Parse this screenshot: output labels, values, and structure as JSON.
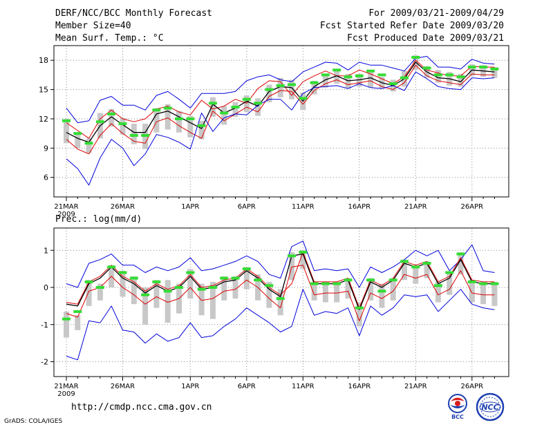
{
  "header": {
    "title": "DERF/NCC/BCC Monthly Forecast",
    "member": "Member Size=40",
    "variable": "Mean Surf. Temp.: °C",
    "period": "For 2009/03/21-2009/04/29",
    "started": "Fcst Started Refer Date 2009/03/20",
    "produced": "Fcst Produced Date 2009/03/21"
  },
  "footer": {
    "url": "http://cmdp.ncc.cma.gov.cn",
    "credit": "GrADS: COLA/IGES",
    "logo1": "BCC",
    "logo2": "NCC"
  },
  "colors": {
    "envelope": "#0000dd",
    "spread": "#dd0000",
    "mean": "#000000",
    "box": "#c8c8c8",
    "observed": "#33dd33",
    "grid": "#888888"
  },
  "chart_data": [
    {
      "type": "line",
      "title": "Mean Surf. Temp.: °C",
      "x_tick_labels": [
        "21MAR",
        "26MAR",
        "1APR",
        "6APR",
        "11APR",
        "16APR",
        "21APR",
        "26APR"
      ],
      "x_tick_days": [
        0,
        5,
        11,
        16,
        21,
        26,
        31,
        36
      ],
      "year_label": "2009",
      "ylim": [
        4,
        19.5
      ],
      "y_ticks": [
        6,
        9,
        12,
        15,
        18
      ],
      "days": [
        0,
        1,
        2,
        3,
        4,
        5,
        6,
        7,
        8,
        9,
        10,
        11,
        12,
        13,
        14,
        15,
        16,
        17,
        18,
        19,
        20,
        21,
        22,
        23,
        24,
        25,
        26,
        27,
        28,
        29,
        30,
        31,
        32,
        33,
        34,
        35,
        36,
        37,
        38
      ],
      "series": [
        {
          "name": "ensemble-max",
          "values": [
            13.1,
            11.6,
            11.8,
            13.9,
            14.3,
            13.4,
            13.4,
            12.9,
            14.4,
            14.8,
            14.0,
            13.1,
            14.6,
            14.6,
            14.6,
            14.8,
            15.9,
            16.3,
            16.5,
            16.0,
            15.8,
            16.8,
            17.3,
            17.8,
            17.7,
            17.0,
            17.8,
            17.5,
            17.5,
            17.2,
            16.9,
            18.2,
            18.4,
            17.3,
            17.3,
            17.1,
            18.1,
            17.7,
            17.6
          ]
        },
        {
          "name": "spread-upper",
          "values": [
            11.6,
            10.8,
            10.0,
            12.0,
            12.9,
            12.0,
            11.7,
            12.0,
            13.0,
            13.3,
            12.7,
            12.4,
            13.9,
            13.0,
            13.3,
            14.0,
            13.6,
            15.1,
            15.9,
            15.8,
            14.4,
            15.8,
            16.4,
            16.9,
            16.4,
            16.4,
            17.0,
            16.6,
            16.1,
            15.6,
            16.3,
            18.0,
            17.0,
            16.7,
            16.4,
            16.4,
            17.4,
            17.3,
            17.3
          ]
        },
        {
          "name": "ensemble-mean",
          "values": [
            10.6,
            10.0,
            9.6,
            11.3,
            12.2,
            11.4,
            10.6,
            10.6,
            12.5,
            12.8,
            12.2,
            11.6,
            11.0,
            13.5,
            12.6,
            13.1,
            13.8,
            13.3,
            14.8,
            15.3,
            15.2,
            13.8,
            15.3,
            16.0,
            16.4,
            15.9,
            16.0,
            16.2,
            15.7,
            15.4,
            16.1,
            17.8,
            16.8,
            16.2,
            16.1,
            15.8,
            17.0,
            16.9,
            16.8
          ]
        },
        {
          "name": "spread-lower",
          "values": [
            9.9,
            8.9,
            8.4,
            10.3,
            11.5,
            10.5,
            9.7,
            9.5,
            11.7,
            12.1,
            11.3,
            10.6,
            10.0,
            12.8,
            11.8,
            12.5,
            13.2,
            12.7,
            14.3,
            14.9,
            14.8,
            13.5,
            14.9,
            15.6,
            16.0,
            15.5,
            15.7,
            15.9,
            15.3,
            15.0,
            15.7,
            17.5,
            16.4,
            15.9,
            15.7,
            15.5,
            16.6,
            16.5,
            16.5
          ]
        },
        {
          "name": "ensemble-min",
          "values": [
            7.9,
            6.9,
            5.2,
            8.0,
            9.9,
            9.0,
            7.2,
            8.4,
            10.4,
            10.1,
            9.6,
            8.9,
            12.6,
            10.7,
            12.1,
            12.5,
            12.4,
            13.4,
            14.0,
            14.0,
            12.9,
            14.6,
            15.2,
            15.3,
            15.4,
            15.1,
            15.6,
            15.2,
            15.1,
            15.4,
            14.9,
            16.8,
            16.1,
            15.3,
            15.1,
            15.0,
            16.2,
            16.1,
            16.2
          ]
        },
        {
          "name": "observed",
          "values": [
            11.8,
            10.5,
            9.5,
            11.7,
            12.5,
            11.5,
            10.3,
            10.3,
            12.9,
            13.1,
            12.0,
            12.0,
            11.3,
            13.6,
            12.6,
            13.2,
            14.0,
            13.6,
            15.0,
            15.4,
            15.5,
            14.1,
            15.7,
            16.5,
            17.0,
            16.3,
            16.4,
            16.9,
            16.5,
            15.6,
            16.2,
            18.3,
            17.2,
            16.5,
            16.5,
            16.3,
            17.3,
            17.3,
            17.1
          ]
        }
      ],
      "boxes": {
        "upper": [
          12.0,
          10.5,
          10.0,
          12.6,
          13.0,
          12.1,
          11.5,
          11.5,
          13.1,
          13.5,
          12.8,
          12.3,
          11.8,
          14.2,
          13.3,
          13.7,
          14.4,
          14.1,
          15.5,
          16.2,
          16.0,
          14.7,
          15.9,
          16.6,
          17.0,
          16.6,
          16.6,
          16.9,
          16.3,
          16.0,
          16.9,
          18.5,
          17.4,
          17.0,
          16.8,
          16.6,
          17.6,
          17.5,
          17.3
        ],
        "lower": [
          9.5,
          9.0,
          8.5,
          10.0,
          11.2,
          10.4,
          9.4,
          8.9,
          10.6,
          10.9,
          10.6,
          10.1,
          9.9,
          12.2,
          11.4,
          12.2,
          12.7,
          12.3,
          13.7,
          14.2,
          14.0,
          12.9,
          14.5,
          15.2,
          15.6,
          15.1,
          15.3,
          15.2,
          15.1,
          14.8,
          15.3,
          17.0,
          16.2,
          15.7,
          15.4,
          15.3,
          16.4,
          16.3,
          16.2
        ]
      }
    },
    {
      "type": "line",
      "title": "Prec.: log(mm/d)",
      "x_tick_labels": [
        "21MAR",
        "26MAR",
        "1APR",
        "6APR",
        "11APR",
        "16APR",
        "21APR",
        "26APR"
      ],
      "x_tick_days": [
        0,
        5,
        11,
        16,
        21,
        26,
        31,
        36
      ],
      "year_label": "2009",
      "ylim": [
        -2.4,
        1.6
      ],
      "y_ticks": [
        -2,
        -1,
        0,
        1
      ],
      "days": [
        0,
        1,
        2,
        3,
        4,
        5,
        6,
        7,
        8,
        9,
        10,
        11,
        12,
        13,
        14,
        15,
        16,
        17,
        18,
        19,
        20,
        21,
        22,
        23,
        24,
        25,
        26,
        27,
        28,
        29,
        30,
        31,
        32,
        33,
        34,
        35,
        36,
        37,
        38
      ],
      "series": [
        {
          "name": "ensemble-max",
          "values": [
            0.1,
            0.0,
            0.65,
            0.75,
            0.9,
            0.6,
            0.6,
            0.4,
            0.55,
            0.45,
            0.55,
            0.8,
            0.45,
            0.5,
            0.6,
            0.7,
            0.85,
            0.7,
            0.35,
            0.25,
            1.1,
            1.25,
            0.45,
            0.5,
            0.45,
            0.5,
            0.0,
            0.55,
            0.4,
            0.55,
            0.75,
            1.0,
            0.85,
            1.0,
            0.45,
            0.75,
            1.15,
            0.45,
            0.4
          ]
        },
        {
          "name": "spread-upper",
          "values": [
            -0.4,
            -0.45,
            0.15,
            0.3,
            0.6,
            0.3,
            0.15,
            -0.1,
            0.1,
            -0.05,
            0.05,
            0.35,
            0.0,
            0.05,
            0.2,
            0.25,
            0.5,
            0.3,
            0.0,
            -0.2,
            0.1,
            0.95,
            0.15,
            0.15,
            0.15,
            0.25,
            -0.55,
            0.2,
            0.05,
            0.25,
            0.7,
            0.6,
            0.7,
            0.15,
            0.3,
            0.8,
            0.2,
            0.15,
            0.15
          ]
        },
        {
          "name": "ensemble-mean",
          "values": [
            -0.45,
            -0.5,
            0.1,
            0.25,
            0.55,
            0.25,
            0.1,
            -0.15,
            0.05,
            -0.1,
            0.0,
            0.3,
            -0.05,
            0.0,
            0.15,
            0.2,
            0.45,
            0.25,
            -0.05,
            -0.25,
            0.85,
            0.9,
            0.1,
            0.1,
            0.1,
            0.2,
            -0.6,
            0.15,
            0.0,
            0.2,
            0.65,
            0.55,
            0.65,
            0.1,
            0.25,
            0.75,
            0.15,
            0.1,
            0.1
          ]
        },
        {
          "name": "spread-lower",
          "values": [
            -0.7,
            -0.8,
            -0.1,
            0.0,
            0.3,
            0.0,
            -0.2,
            -0.45,
            -0.25,
            -0.4,
            -0.3,
            0.0,
            -0.35,
            -0.3,
            -0.1,
            -0.05,
            0.2,
            0.0,
            -0.3,
            -0.55,
            0.55,
            0.6,
            -0.2,
            -0.15,
            -0.15,
            -0.1,
            -0.9,
            -0.15,
            -0.3,
            -0.1,
            0.35,
            0.25,
            0.35,
            -0.2,
            -0.05,
            0.45,
            -0.15,
            -0.2,
            -0.2
          ]
        },
        {
          "name": "ensemble-min",
          "values": [
            -1.85,
            -1.95,
            -0.9,
            -0.95,
            -0.5,
            -1.15,
            -1.2,
            -1.5,
            -1.25,
            -1.45,
            -1.35,
            -0.95,
            -1.35,
            -1.3,
            -1.05,
            -0.85,
            -0.55,
            -0.75,
            -0.95,
            -1.2,
            -1.05,
            -0.05,
            -0.75,
            -0.65,
            -0.7,
            -0.55,
            -1.3,
            -0.5,
            -0.75,
            -0.55,
            -0.2,
            -0.25,
            -0.2,
            -0.65,
            -0.35,
            -0.05,
            -0.45,
            -0.55,
            -0.6
          ]
        },
        {
          "name": "observed",
          "values": [
            -0.85,
            -0.65,
            0.15,
            0.0,
            0.55,
            0.4,
            0.25,
            -0.2,
            0.15,
            -0.1,
            0.0,
            0.4,
            -0.05,
            0.0,
            0.25,
            0.25,
            0.5,
            0.2,
            0.05,
            -0.3,
            0.85,
            0.95,
            0.1,
            0.1,
            0.1,
            0.2,
            -0.55,
            0.2,
            -0.1,
            0.2,
            0.7,
            0.55,
            0.65,
            0.05,
            0.4,
            0.9,
            0.15,
            0.1,
            0.1
          ]
        }
      ],
      "boxes": {
        "upper": [
          -0.65,
          -0.75,
          0.2,
          0.1,
          0.6,
          0.45,
          0.3,
          0.0,
          0.2,
          0.2,
          0.1,
          0.5,
          0.1,
          0.15,
          0.3,
          0.3,
          0.55,
          0.35,
          0.15,
          -0.05,
          0.95,
          1.0,
          0.15,
          0.15,
          0.15,
          0.25,
          -0.4,
          0.25,
          0.1,
          0.25,
          0.75,
          0.6,
          0.7,
          0.15,
          0.4,
          0.95,
          0.2,
          0.15,
          0.15
        ],
        "lower": [
          -1.35,
          -1.15,
          -0.5,
          -0.35,
          0.0,
          -0.25,
          -0.45,
          -1.0,
          -0.55,
          -0.95,
          -0.7,
          -0.3,
          -0.75,
          -0.85,
          -0.35,
          -0.3,
          -0.05,
          -0.35,
          -0.55,
          -0.75,
          0.2,
          0.5,
          -0.35,
          -0.4,
          -0.4,
          -0.3,
          -1.05,
          -0.35,
          -0.55,
          -0.35,
          0.2,
          0.1,
          0.25,
          -0.4,
          -0.2,
          0.35,
          -0.4,
          -0.45,
          -0.5
        ]
      }
    }
  ]
}
